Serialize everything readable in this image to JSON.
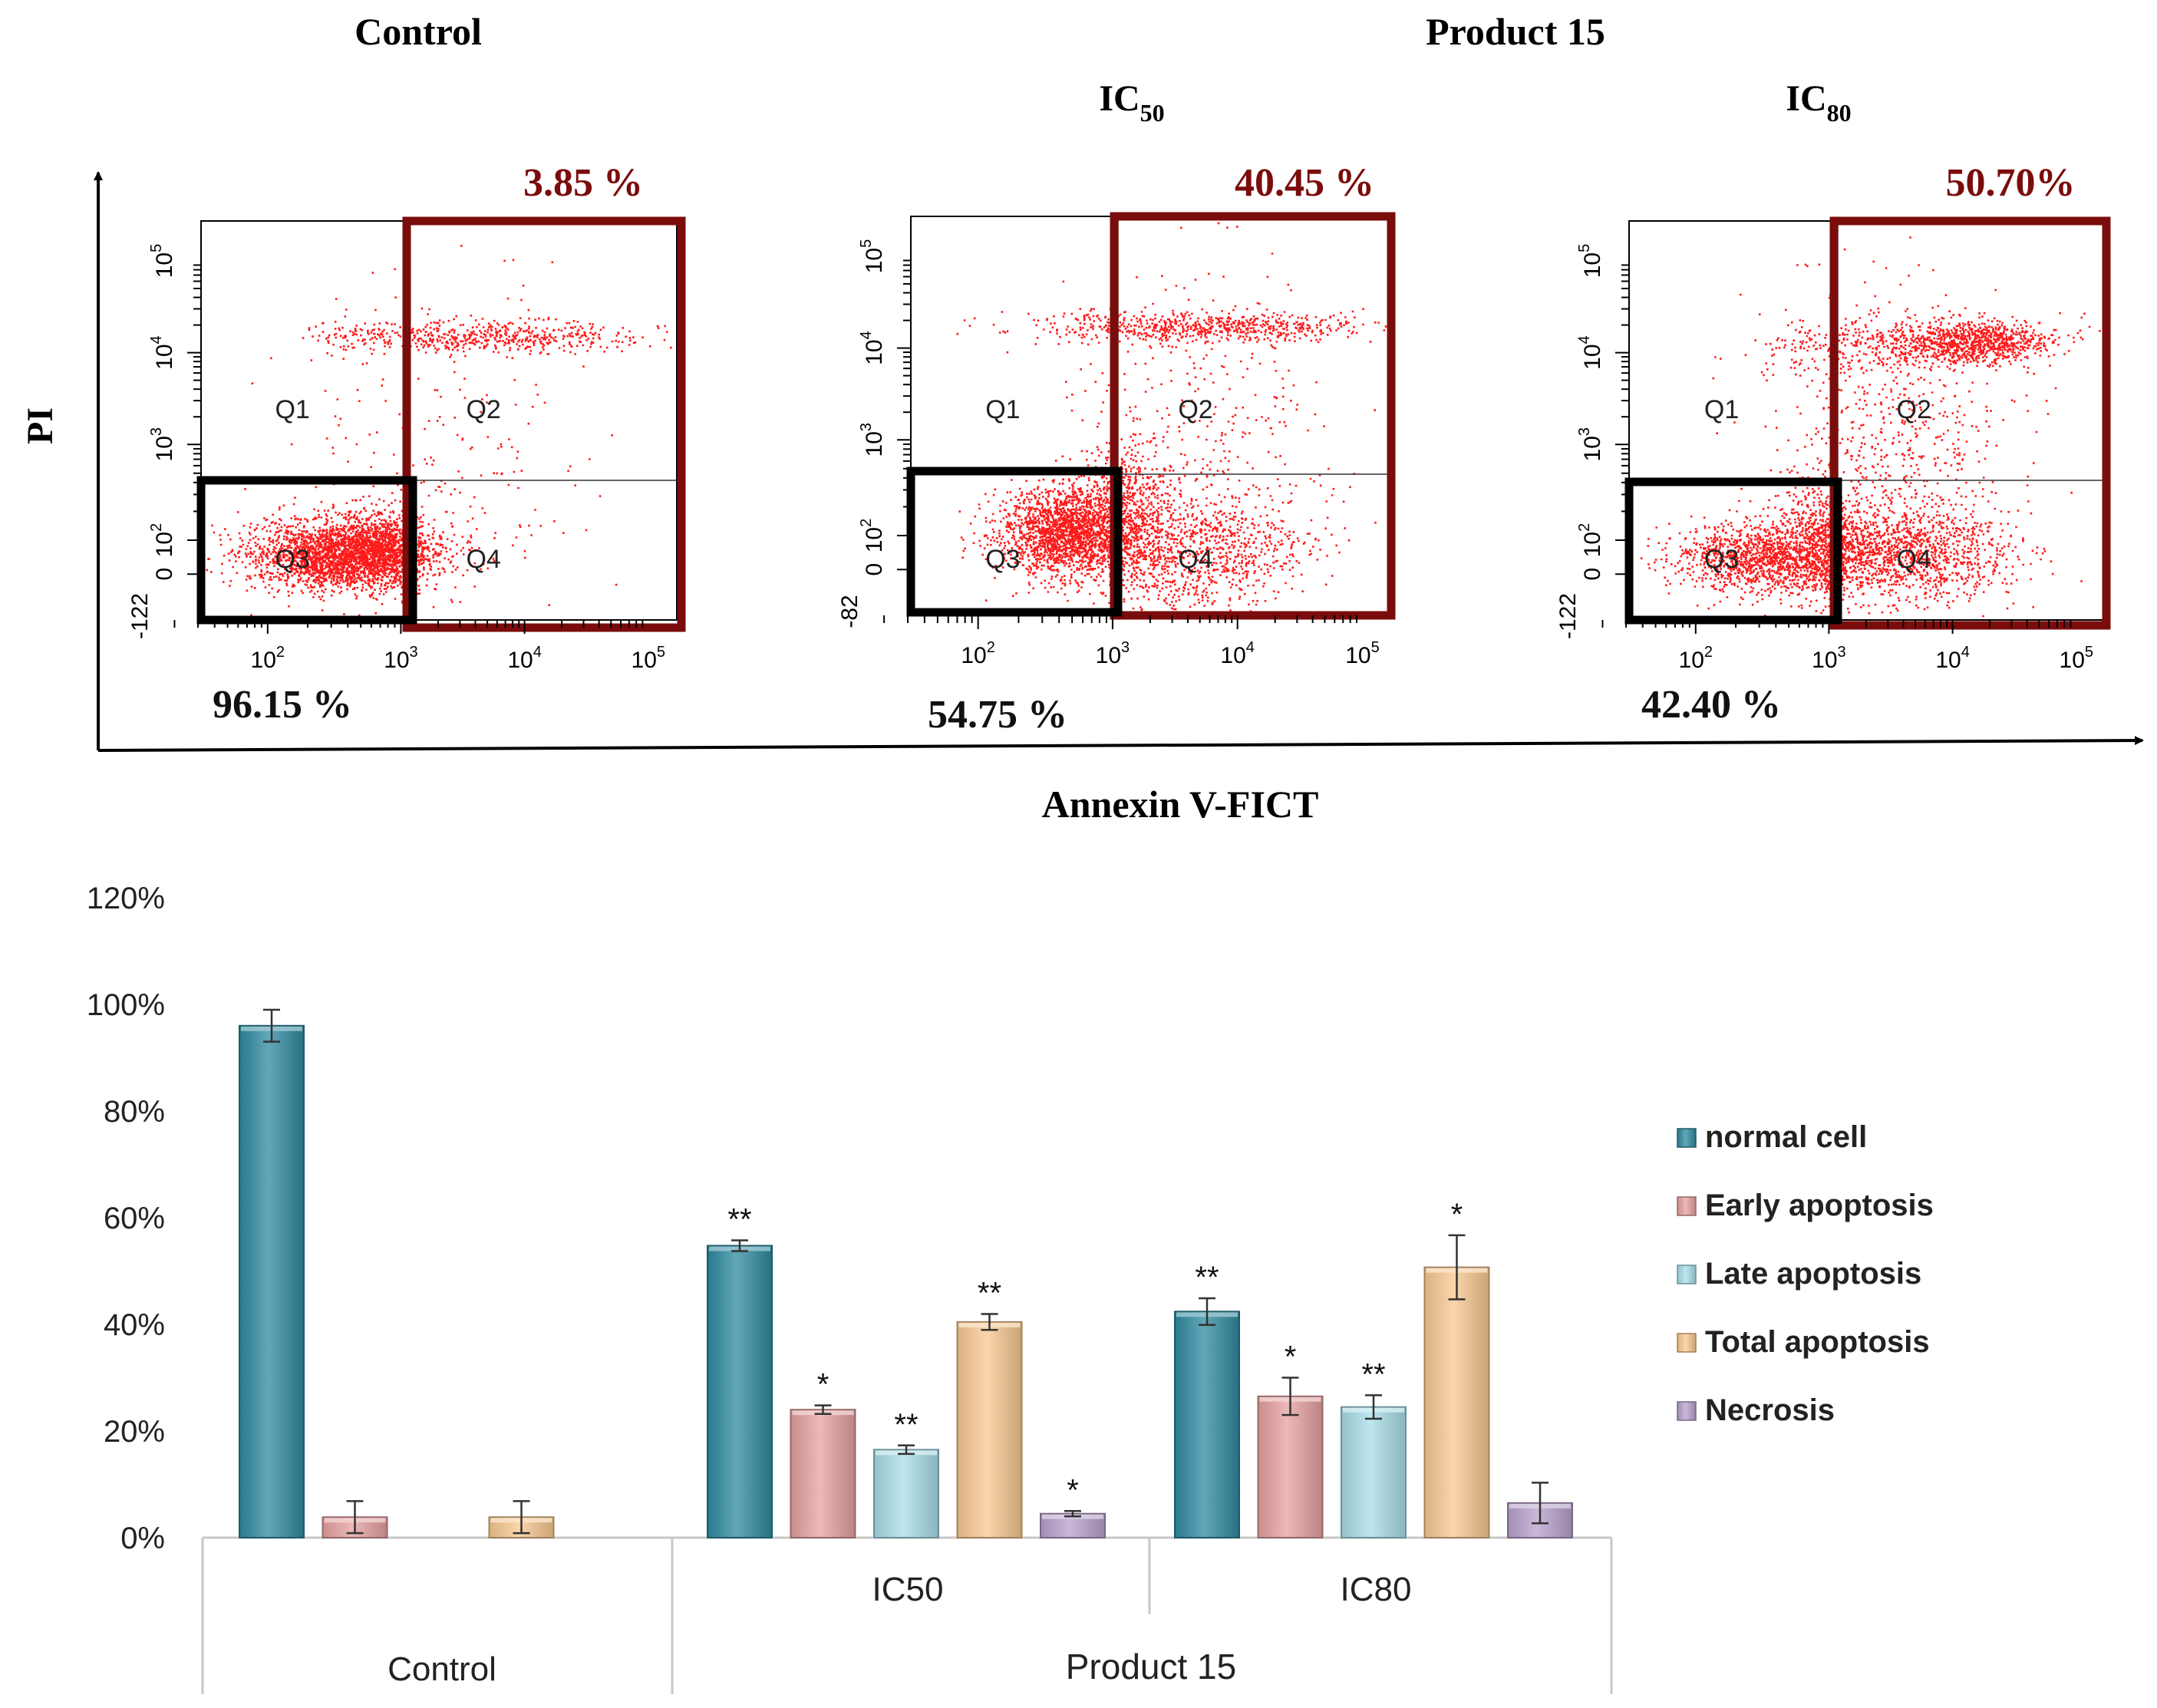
{
  "flow_panel": {
    "group_control": "Control",
    "group_product": "Product 15",
    "ic50_base": "IC",
    "ic50_sub": "50",
    "ic80_base": "IC",
    "ic80_sub": "80",
    "y_axis_label": "PI",
    "x_axis_label": "Annexin V-FICT",
    "quadrant_labels": [
      "Q1",
      "Q2",
      "Q3",
      "Q4"
    ],
    "tick_base": "10",
    "tick_exponents": [
      "2",
      "3",
      "4",
      "5"
    ],
    "zero_label": "0",
    "plots": [
      {
        "apoptosis_label": "3.85 %",
        "normal_label": "96.15 %",
        "y_min_label": "-122"
      },
      {
        "apoptosis_label": "40.45 %",
        "normal_label": "54.75 %",
        "y_min_label": "-82"
      },
      {
        "apoptosis_label": "50.70%",
        "normal_label": "42.40 %",
        "y_min_label": "-122"
      }
    ],
    "colors": {
      "dots": "#ff1a1a",
      "gate_apoptosis": "#7b0c0c",
      "gate_normal": "#000000",
      "text_apoptosis": "#7b0c0c"
    }
  },
  "chart_data": {
    "type": "bar",
    "title": "",
    "xlabel": "",
    "ylabel": "",
    "ylim": [
      0,
      120
    ],
    "ytick_values": [
      0,
      20,
      40,
      60,
      80,
      100,
      120
    ],
    "ytick_labels": [
      "0%",
      "20%",
      "40%",
      "60%",
      "80%",
      "100%",
      "120%"
    ],
    "categories": [
      "Control",
      "IC50",
      "IC80"
    ],
    "outer_groups": [
      {
        "label": "Control",
        "sub_label": ""
      },
      {
        "label": "Product 15",
        "sub_labels": [
          "IC50",
          "IC80"
        ]
      }
    ],
    "legend_position": "right",
    "series": [
      {
        "name": "normal cell",
        "color": "#2e8aa0",
        "values": [
          96,
          54.75,
          42.4
        ],
        "errors": [
          3,
          1,
          2.5
        ],
        "significance": [
          "",
          "**",
          "**"
        ]
      },
      {
        "name": "Early apoptosis",
        "color": "#e6a0a0",
        "values": [
          3.85,
          24,
          26.5
        ],
        "errors": [
          3,
          0.8,
          3.5
        ],
        "significance": [
          "",
          "*",
          "*"
        ]
      },
      {
        "name": "Late apoptosis",
        "color": "#a8dde8",
        "values": [
          0,
          16.5,
          24.5
        ],
        "errors": [
          0,
          0.8,
          2.2
        ],
        "significance": [
          "",
          "**",
          "**"
        ]
      },
      {
        "name": "Total apoptosis",
        "color": "#f8c890",
        "values": [
          3.85,
          40.45,
          50.7
        ],
        "errors": [
          3,
          1.5,
          6
        ],
        "significance": [
          "",
          "**",
          "*"
        ]
      },
      {
        "name": "Necrosis",
        "color": "#b8a0cc",
        "values": [
          0,
          4.5,
          6.5
        ],
        "errors": [
          0,
          0.5,
          3.8
        ],
        "significance": [
          "",
          "*",
          ""
        ]
      }
    ]
  }
}
